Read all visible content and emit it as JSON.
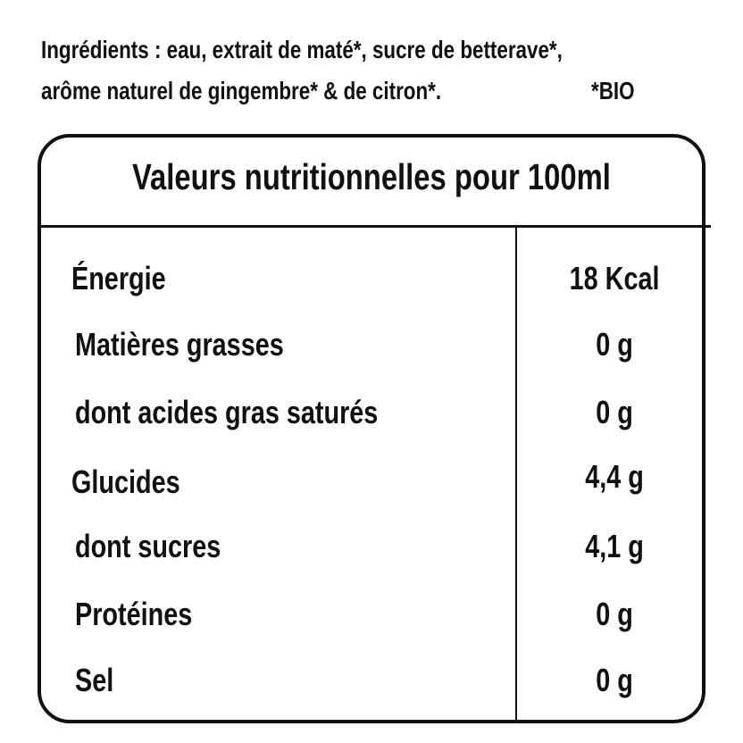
{
  "ingredients": {
    "line1": "Ingrédients : eau, extrait de maté*, sucre de betterave*,",
    "line2": "arôme naturel de gingembre* & de citron*.",
    "bio_note": "*BIO"
  },
  "table": {
    "title": "Valeurs nutritionnelles pour 100ml",
    "rows": [
      {
        "label": "Énergie",
        "value": "18 Kcal"
      },
      {
        "label": "Matières grasses",
        "value": "0 g"
      },
      {
        "label": "dont acides gras saturés",
        "value": "0 g"
      },
      {
        "label": "Glucides",
        "value": "4,4 g"
      },
      {
        "label": "dont sucres",
        "value": "4,1 g"
      },
      {
        "label": "Protéines",
        "value": "0 g"
      },
      {
        "label": "Sel",
        "value": "0 g"
      }
    ]
  }
}
